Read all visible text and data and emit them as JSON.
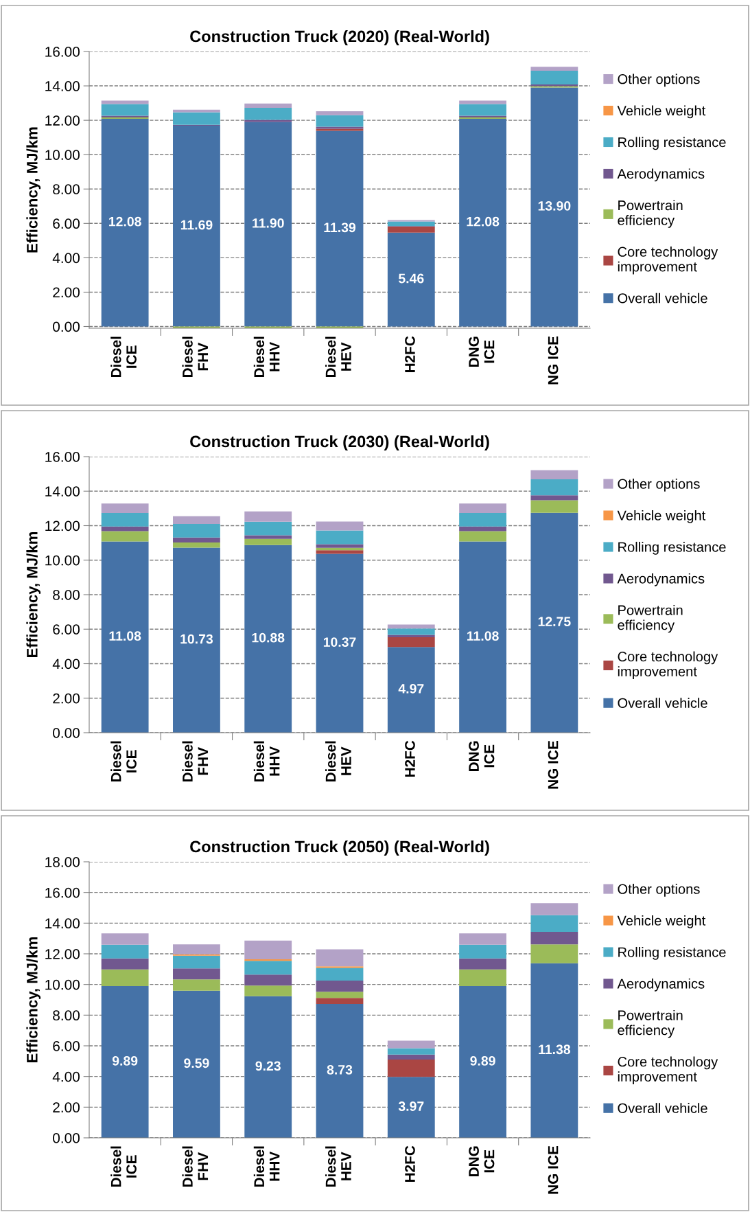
{
  "chart_data": [
    {
      "type": "bar",
      "stacked": true,
      "title": "Construction Truck (2020) (Real-World)",
      "ylabel": "Efficiency, MJ/km",
      "categories": [
        "Diesel\nICE",
        "Diesel\nFHV",
        "Diesel\nHHV",
        "Diesel\nHEV",
        "H2FC",
        "DNG\nICE",
        "NG ICE"
      ],
      "ylim": [
        -0.1,
        16
      ],
      "yticks": [
        {
          "value": 0,
          "label": "0.00"
        },
        {
          "value": 2,
          "label": "2.00"
        },
        {
          "value": 4,
          "label": "4.00"
        },
        {
          "value": 6,
          "label": "6.00"
        },
        {
          "value": 8,
          "label": "8.00"
        },
        {
          "value": 10,
          "label": "10.00"
        },
        {
          "value": 12,
          "label": "12.00"
        },
        {
          "value": 14,
          "label": "14.00"
        },
        {
          "value": 16,
          "label": "16.00"
        }
      ],
      "grid": "y",
      "legend": "right",
      "series": [
        {
          "name": "Overall vehicle",
          "color": "#4572a7",
          "values": [
            12.08,
            11.69,
            11.9,
            11.39,
            5.46,
            12.08,
            13.9
          ],
          "value_labels": [
            "12.08",
            "11.69",
            "11.90",
            "11.39",
            "5.46",
            "12.08",
            "13.90"
          ]
        },
        {
          "name": "Core technology\nimprovement",
          "color": "#aa4643",
          "values": [
            0,
            0,
            0,
            0.12,
            0.35,
            0,
            0
          ]
        },
        {
          "name": "Powertrain\nefficiency",
          "color": "#9bbb59",
          "values": [
            0.08,
            -0.1,
            -0.1,
            -0.1,
            0,
            0.08,
            0.08
          ]
        },
        {
          "name": "Aerodynamics",
          "color": "#71588f",
          "values": [
            0.1,
            0.05,
            0.12,
            0.12,
            0.03,
            0.1,
            0.1
          ]
        },
        {
          "name": "Rolling resistance",
          "color": "#4bacc6",
          "values": [
            0.68,
            0.72,
            0.7,
            0.66,
            0.27,
            0.68,
            0.8
          ]
        },
        {
          "name": "Vehicle weight",
          "color": "#f79646",
          "values": [
            0,
            0,
            0,
            0,
            0,
            0,
            0
          ]
        },
        {
          "name": "Other options",
          "color": "#b3a2c7",
          "values": [
            0.2,
            0.15,
            0.25,
            0.23,
            0.08,
            0.2,
            0.23
          ]
        }
      ]
    },
    {
      "type": "bar",
      "stacked": true,
      "title": "Construction Truck (2030) (Real-World)",
      "ylabel": "Efficiency, MJ/km",
      "categories": [
        "Diesel\nICE",
        "Diesel\nFHV",
        "Diesel\nHHV",
        "Diesel\nHEV",
        "H2FC",
        "DNG\nICE",
        "NG ICE"
      ],
      "ylim": [
        0,
        16
      ],
      "yticks": [
        {
          "value": 0,
          "label": "0.00"
        },
        {
          "value": 2,
          "label": "2.00"
        },
        {
          "value": 4,
          "label": "4.00"
        },
        {
          "value": 6,
          "label": "6.00"
        },
        {
          "value": 8,
          "label": "8.00"
        },
        {
          "value": 10,
          "label": "10.00"
        },
        {
          "value": 12,
          "label": "12.00"
        },
        {
          "value": 14,
          "label": "14.00"
        },
        {
          "value": 16,
          "label": "16.00"
        }
      ],
      "grid": "y",
      "legend": "right",
      "series": [
        {
          "name": "Overall vehicle",
          "color": "#4572a7",
          "values": [
            11.08,
            10.73,
            10.88,
            10.37,
            4.97,
            11.08,
            12.75
          ],
          "value_labels": [
            "11.08",
            "10.73",
            "10.88",
            "10.37",
            "4.97",
            "11.08",
            "12.75"
          ]
        },
        {
          "name": "Core technology\nimprovement",
          "color": "#aa4643",
          "values": [
            0,
            0,
            0,
            0.21,
            0.56,
            0,
            0
          ]
        },
        {
          "name": "Powertrain\nefficiency",
          "color": "#9bbb59",
          "values": [
            0.6,
            0.29,
            0.35,
            0.14,
            0,
            0.6,
            0.72
          ]
        },
        {
          "name": "Aerodynamics",
          "color": "#71588f",
          "values": [
            0.27,
            0.29,
            0.21,
            0.21,
            0.14,
            0.27,
            0.29
          ]
        },
        {
          "name": "Rolling resistance",
          "color": "#4bacc6",
          "values": [
            0.79,
            0.79,
            0.79,
            0.79,
            0.37,
            0.79,
            0.93
          ]
        },
        {
          "name": "Vehicle weight",
          "color": "#f79646",
          "values": [
            0,
            0,
            0,
            0,
            0,
            0,
            0
          ]
        },
        {
          "name": "Other options",
          "color": "#b3a2c7",
          "values": [
            0.54,
            0.45,
            0.6,
            0.52,
            0.23,
            0.54,
            0.52
          ]
        }
      ]
    },
    {
      "type": "bar",
      "stacked": true,
      "title": "Construction Truck (2050) (Real-World)",
      "ylabel": "Efficiency, MJ/km",
      "categories": [
        "Diesel\nICE",
        "Diesel\nFHV",
        "Diesel\nHHV",
        "Diesel\nHEV",
        "H2FC",
        "DNG\nICE",
        "NG ICE"
      ],
      "ylim": [
        0,
        18
      ],
      "yticks": [
        {
          "value": 0,
          "label": "0.00"
        },
        {
          "value": 2,
          "label": "2.00"
        },
        {
          "value": 4,
          "label": "4.00"
        },
        {
          "value": 6,
          "label": "6.00"
        },
        {
          "value": 8,
          "label": "8.00"
        },
        {
          "value": 10,
          "label": "10.00"
        },
        {
          "value": 12,
          "label": "12.00"
        },
        {
          "value": 14,
          "label": "14.00"
        },
        {
          "value": 16,
          "label": "16.00"
        },
        {
          "value": 18,
          "label": "18.00"
        }
      ],
      "grid": "y",
      "legend": "right",
      "series": [
        {
          "name": "Overall vehicle",
          "color": "#4572a7",
          "values": [
            9.89,
            9.59,
            9.23,
            8.73,
            3.97,
            9.89,
            11.38
          ],
          "value_labels": [
            "9.89",
            "9.59",
            "9.23",
            "8.73",
            "3.97",
            "9.89",
            "11.38"
          ]
        },
        {
          "name": "Core technology\nimprovement",
          "color": "#aa4643",
          "values": [
            0,
            0,
            0,
            0.39,
            1.13,
            0,
            0
          ]
        },
        {
          "name": "Powertrain\nefficiency",
          "color": "#9bbb59",
          "values": [
            1.09,
            0.74,
            0.7,
            0.41,
            0,
            1.09,
            1.24
          ]
        },
        {
          "name": "Aerodynamics",
          "color": "#71588f",
          "values": [
            0.72,
            0.72,
            0.72,
            0.72,
            0.33,
            0.72,
            0.81
          ]
        },
        {
          "name": "Rolling resistance",
          "color": "#4bacc6",
          "values": [
            0.89,
            0.83,
            0.89,
            0.83,
            0.41,
            0.89,
            1.09
          ]
        },
        {
          "name": "Vehicle weight",
          "color": "#f79646",
          "values": [
            0,
            0.09,
            0.1,
            0.1,
            0,
            0,
            0
          ]
        },
        {
          "name": "Other options",
          "color": "#b3a2c7",
          "values": [
            0.74,
            0.65,
            1.22,
            1.11,
            0.5,
            0.74,
            0.78
          ]
        }
      ]
    }
  ]
}
